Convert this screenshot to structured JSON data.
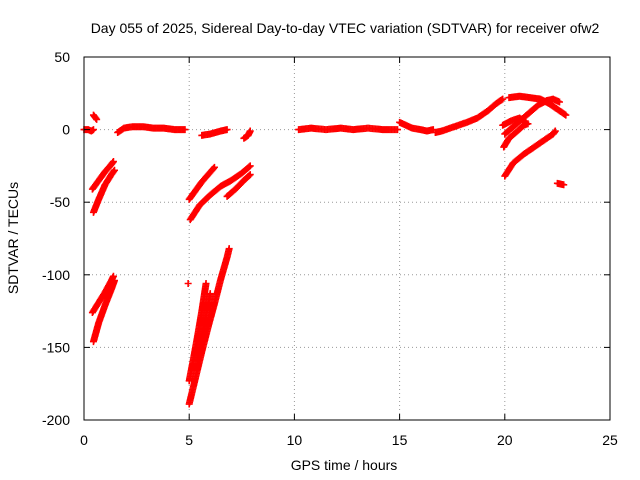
{
  "chart_data": {
    "type": "scatter",
    "title": "Day 055 of 2025, Sidereal Day-to-day VTEC variation (SDTVAR) for receiver ofw2",
    "xlabel": "GPS time / hours",
    "ylabel": "SDTVAR / TECUs",
    "xlim": [
      0,
      25
    ],
    "ylim": [
      -200,
      50
    ],
    "xticks": [
      0,
      5,
      10,
      15,
      20,
      25
    ],
    "yticks": [
      -200,
      -150,
      -100,
      -50,
      0,
      50
    ],
    "xtick_labels": [
      "0",
      "5",
      "10",
      "15",
      "20",
      "25"
    ],
    "ytick_labels": [
      "-200",
      "-150",
      "-100",
      "-50",
      "0",
      "50"
    ],
    "grid": true,
    "marker": "+",
    "series": [
      {
        "name": "SDTVAR",
        "color": "#ff0000",
        "tracks": [
          [
            [
              0.0,
              0
            ],
            [
              0.2,
              0
            ],
            [
              0.35,
              -1
            ],
            [
              0.45,
              0
            ]
          ],
          [
            [
              0.45,
              10
            ],
            [
              0.6,
              7
            ]
          ],
          [
            [
              0.4,
              -41
            ],
            [
              0.7,
              -35
            ],
            [
              1.0,
              -29
            ],
            [
              1.3,
              -24
            ],
            [
              1.4,
              -22
            ]
          ],
          [
            [
              0.45,
              -57
            ],
            [
              0.7,
              -48
            ],
            [
              1.0,
              -38
            ],
            [
              1.3,
              -31
            ],
            [
              1.45,
              -28
            ]
          ],
          [
            [
              0.4,
              -126
            ],
            [
              0.7,
              -119
            ],
            [
              1.0,
              -112
            ],
            [
              1.3,
              -104
            ],
            [
              1.4,
              -101
            ]
          ],
          [
            [
              0.45,
              -146
            ],
            [
              0.7,
              -133
            ],
            [
              1.0,
              -121
            ],
            [
              1.3,
              -110
            ],
            [
              1.45,
              -104
            ]
          ],
          [
            [
              1.6,
              -2
            ],
            [
              1.9,
              1
            ],
            [
              2.3,
              2
            ],
            [
              2.8,
              2
            ],
            [
              3.3,
              1
            ],
            [
              3.8,
              1
            ],
            [
              4.3,
              0
            ],
            [
              4.8,
              0
            ]
          ],
          [
            [
              4.95,
              -106
            ]
          ],
          [
            [
              5.0,
              -48
            ],
            [
              5.3,
              -42
            ],
            [
              5.6,
              -36
            ],
            [
              5.9,
              -31
            ],
            [
              6.2,
              -26
            ]
          ],
          [
            [
              5.05,
              -62
            ],
            [
              5.5,
              -52
            ],
            [
              6.0,
              -45
            ],
            [
              6.5,
              -39
            ],
            [
              7.0,
              -35
            ],
            [
              7.5,
              -30
            ],
            [
              7.9,
              -25
            ]
          ],
          [
            [
              6.8,
              -46
            ],
            [
              7.2,
              -41
            ],
            [
              7.6,
              -35
            ],
            [
              7.9,
              -31
            ]
          ],
          [
            [
              5.0,
              -173
            ],
            [
              5.2,
              -158
            ],
            [
              5.4,
              -142
            ],
            [
              5.6,
              -125
            ],
            [
              5.8,
              -106
            ]
          ],
          [
            [
              5.0,
              -189
            ],
            [
              5.3,
              -171
            ],
            [
              5.6,
              -153
            ],
            [
              5.9,
              -136
            ],
            [
              6.2,
              -120
            ],
            [
              6.5,
              -103
            ],
            [
              6.8,
              -88
            ],
            [
              6.9,
              -82
            ]
          ],
          [
            [
              5.4,
              -160
            ],
            [
              5.6,
              -143
            ],
            [
              5.8,
              -128
            ],
            [
              6.0,
              -113
            ]
          ],
          [
            [
              5.6,
              -4
            ],
            [
              6.0,
              -3
            ],
            [
              6.5,
              -1
            ],
            [
              6.8,
              0
            ]
          ],
          [
            [
              7.6,
              -6
            ],
            [
              7.8,
              -4
            ],
            [
              7.9,
              -1
            ]
          ],
          [
            [
              10.2,
              0
            ],
            [
              10.8,
              1
            ],
            [
              11.5,
              0
            ],
            [
              12.2,
              1
            ],
            [
              12.8,
              0
            ],
            [
              13.5,
              1
            ],
            [
              14.2,
              0
            ],
            [
              14.9,
              0
            ]
          ],
          [
            [
              15.0,
              5
            ],
            [
              15.3,
              3
            ],
            [
              15.6,
              1
            ],
            [
              16.0,
              0
            ],
            [
              16.3,
              -1
            ],
            [
              16.6,
              0
            ]
          ],
          [
            [
              16.7,
              -2
            ],
            [
              17.0,
              -1
            ],
            [
              17.4,
              1
            ],
            [
              17.8,
              3
            ],
            [
              18.2,
              5
            ],
            [
              18.7,
              8
            ],
            [
              19.2,
              13
            ],
            [
              19.6,
              18
            ],
            [
              19.9,
              21
            ]
          ],
          [
            [
              20.2,
              22
            ],
            [
              20.7,
              23
            ],
            [
              21.2,
              22
            ],
            [
              21.7,
              21
            ],
            [
              22.1,
              18
            ],
            [
              22.4,
              15
            ],
            [
              22.7,
              12
            ],
            [
              22.9,
              10
            ]
          ],
          [
            [
              20.0,
              -3
            ],
            [
              20.4,
              2
            ],
            [
              20.8,
              7
            ],
            [
              21.2,
              12
            ],
            [
              21.6,
              17
            ],
            [
              22.0,
              20
            ],
            [
              22.3,
              21
            ],
            [
              22.6,
              19
            ]
          ],
          [
            [
              19.9,
              3
            ],
            [
              20.3,
              6
            ],
            [
              20.7,
              8
            ],
            [
              21.0,
              5
            ]
          ],
          [
            [
              19.95,
              -12
            ],
            [
              20.2,
              -6
            ],
            [
              20.6,
              -1
            ],
            [
              20.9,
              3
            ],
            [
              21.1,
              4
            ]
          ],
          [
            [
              20.0,
              -32
            ],
            [
              20.4,
              -23
            ],
            [
              20.9,
              -17
            ],
            [
              21.4,
              -12
            ],
            [
              21.9,
              -7
            ],
            [
              22.3,
              -3
            ],
            [
              22.4,
              -1
            ]
          ],
          [
            [
              22.5,
              -37
            ],
            [
              22.8,
              -38
            ]
          ]
        ]
      }
    ]
  }
}
